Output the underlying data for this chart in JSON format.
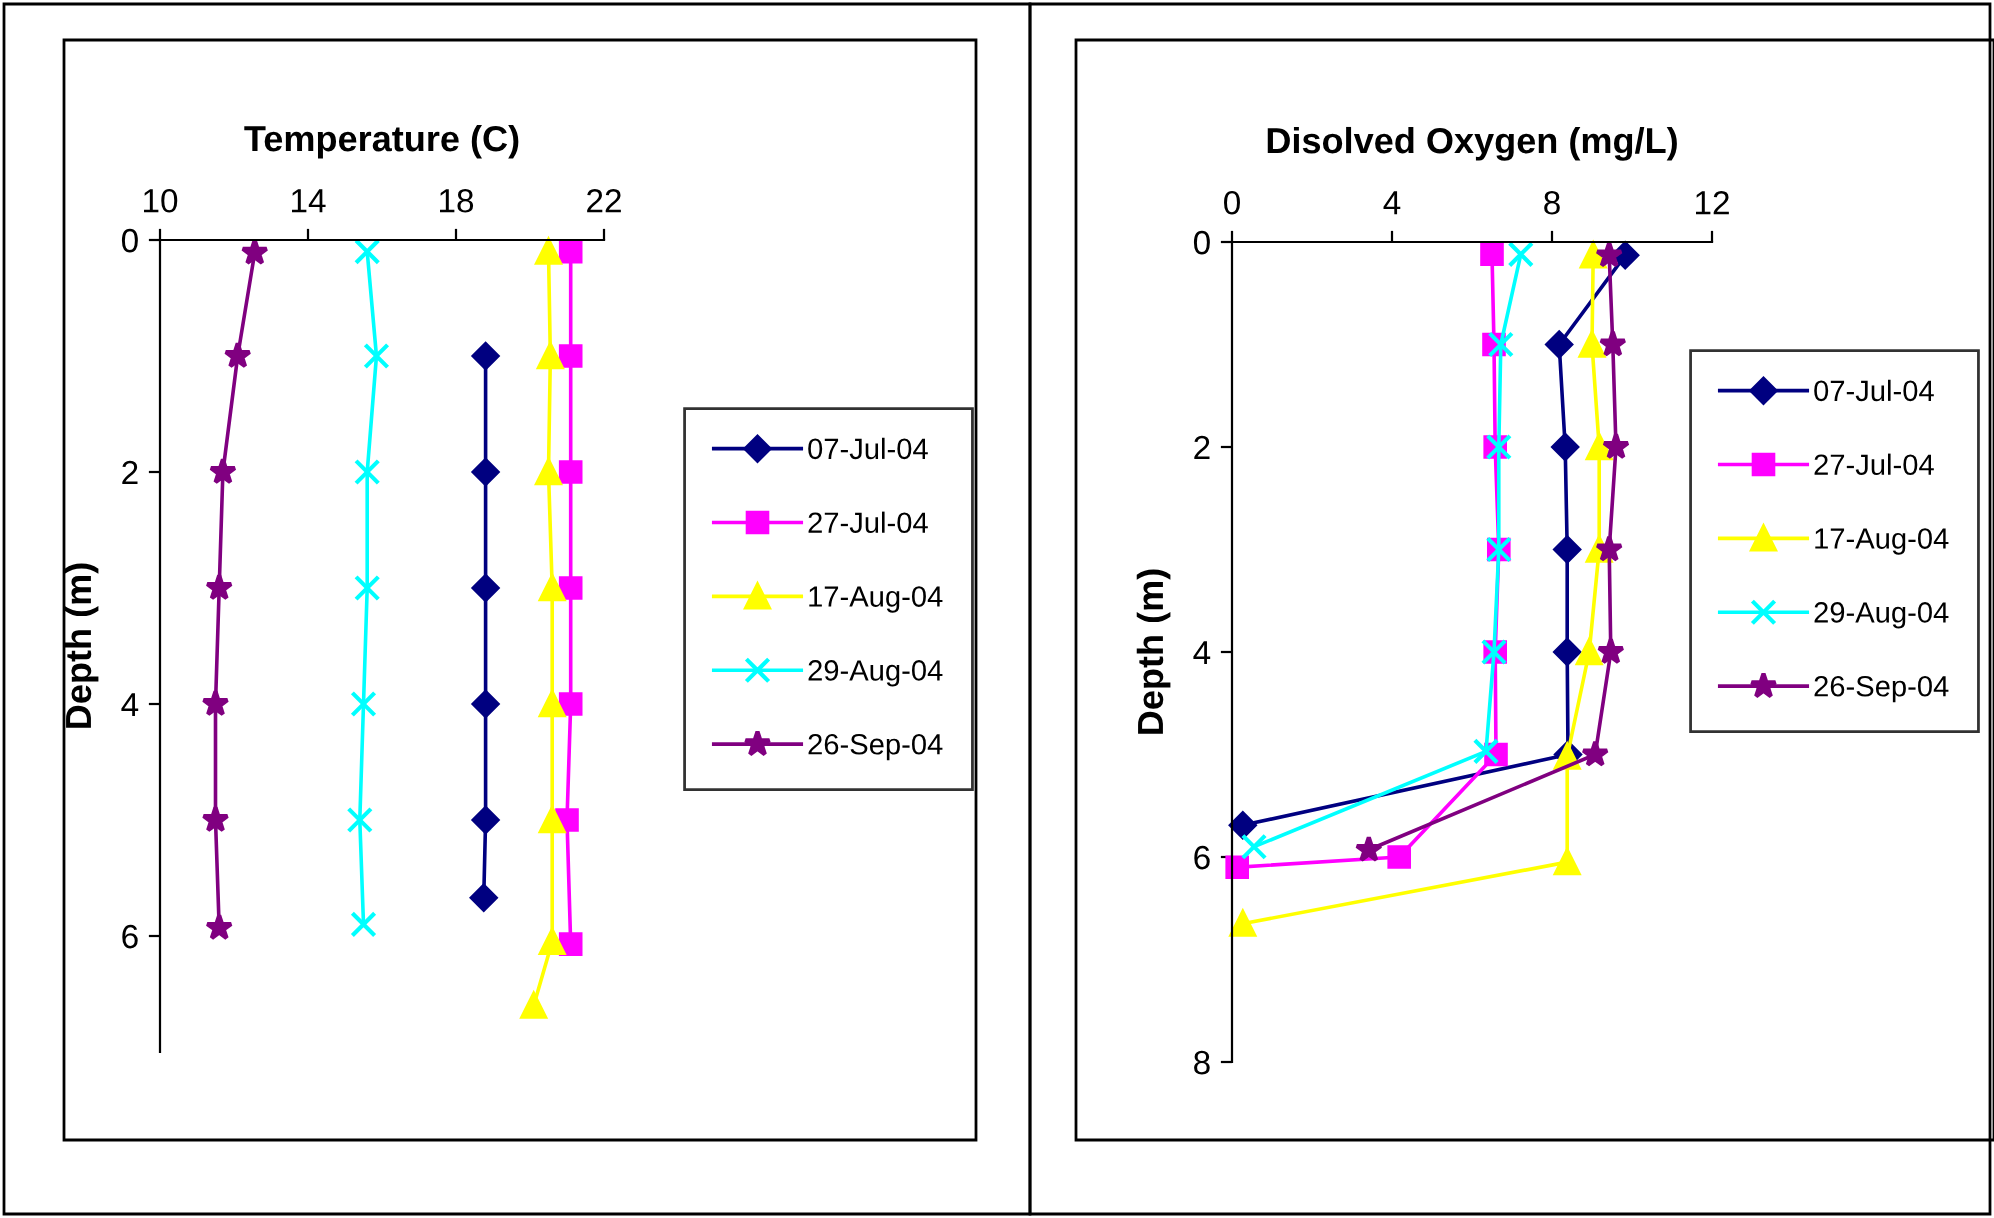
{
  "chart_data": [
    {
      "type": "line",
      "title": "Temperature (C)",
      "ylabel": "Depth (m)",
      "xlim": [
        10,
        22
      ],
      "xticks": [
        10,
        14,
        18,
        22
      ],
      "ylim": [
        7,
        0
      ],
      "yticks": [
        0,
        2,
        4,
        6
      ],
      "grid": false,
      "legend": "right",
      "line_style": "solid",
      "series": [
        {
          "name": "07-Jul-04",
          "color": "#000080",
          "marker": "diamond",
          "x": [
            18.8,
            18.8,
            18.8,
            18.8,
            18.8,
            18.75
          ],
          "values": [
            1,
            2,
            3,
            4,
            5,
            5.67
          ]
        },
        {
          "name": "27-Jul-04",
          "color": "#ff00ff",
          "marker": "square",
          "x": [
            21.1,
            21.1,
            21.1,
            21.1,
            21.1,
            21.0,
            21.1
          ],
          "values": [
            0.1,
            1,
            2,
            3,
            4,
            5,
            6.07
          ]
        },
        {
          "name": "17-Aug-04",
          "color": "#ffff00",
          "marker": "triangle",
          "x": [
            20.5,
            20.55,
            20.5,
            20.6,
            20.6,
            20.6,
            20.6,
            20.1
          ],
          "values": [
            0.1,
            1,
            2,
            3,
            4,
            5,
            6.05,
            6.6
          ]
        },
        {
          "name": "29-Aug-04",
          "color": "#00ffff",
          "marker": "cross",
          "x": [
            15.6,
            15.85,
            15.6,
            15.6,
            15.5,
            15.4,
            15.5
          ],
          "values": [
            0.1,
            1,
            2,
            3,
            4,
            5,
            5.9
          ]
        },
        {
          "name": "26-Sep-04",
          "color": "#800080",
          "marker": "star",
          "x": [
            12.56,
            12.1,
            11.7,
            11.6,
            11.5,
            11.5,
            11.6
          ],
          "values": [
            0.11,
            1,
            2,
            3,
            4,
            5,
            5.93
          ]
        }
      ]
    },
    {
      "type": "line",
      "title": "Disolved Oxygen (mg/L)",
      "ylabel": "Depth (m)",
      "xlim": [
        0,
        12
      ],
      "xticks": [
        0,
        4,
        8,
        12
      ],
      "ylim": [
        8,
        0
      ],
      "yticks": [
        0,
        2,
        4,
        6,
        8
      ],
      "grid": false,
      "legend": "right",
      "line_style": "solid",
      "series": [
        {
          "name": "07-Jul-04",
          "color": "#000080",
          "marker": "diamond",
          "x": [
            9.83,
            8.18,
            8.33,
            8.38,
            8.38,
            8.4,
            0.27
          ],
          "values": [
            0.13,
            1,
            2,
            3,
            4,
            5,
            5.69
          ]
        },
        {
          "name": "27-Jul-04",
          "color": "#ff00ff",
          "marker": "square",
          "x": [
            6.5,
            6.55,
            6.58,
            6.67,
            6.58,
            6.6,
            4.18,
            0.13
          ],
          "values": [
            0.12,
            1,
            2,
            3,
            4,
            5,
            6,
            6.1
          ]
        },
        {
          "name": "17-Aug-04",
          "color": "#ffff00",
          "marker": "triangle",
          "x": [
            9.03,
            9.0,
            9.18,
            9.18,
            8.93,
            8.38,
            8.38,
            0.27
          ],
          "values": [
            0.13,
            1,
            2,
            3,
            4,
            5.02,
            6.05,
            6.65
          ]
        },
        {
          "name": "29-Aug-04",
          "color": "#00ffff",
          "marker": "cross",
          "x": [
            7.22,
            6.72,
            6.67,
            6.67,
            6.55,
            6.35,
            0.55
          ],
          "values": [
            0.12,
            1,
            2,
            3,
            4,
            4.97,
            5.9
          ]
        },
        {
          "name": "26-Sep-04",
          "color": "#800080",
          "marker": "star",
          "x": [
            9.43,
            9.52,
            9.6,
            9.43,
            9.47,
            9.08,
            3.42
          ],
          "values": [
            0.13,
            1,
            2,
            3,
            4,
            5,
            5.93
          ]
        }
      ]
    }
  ]
}
